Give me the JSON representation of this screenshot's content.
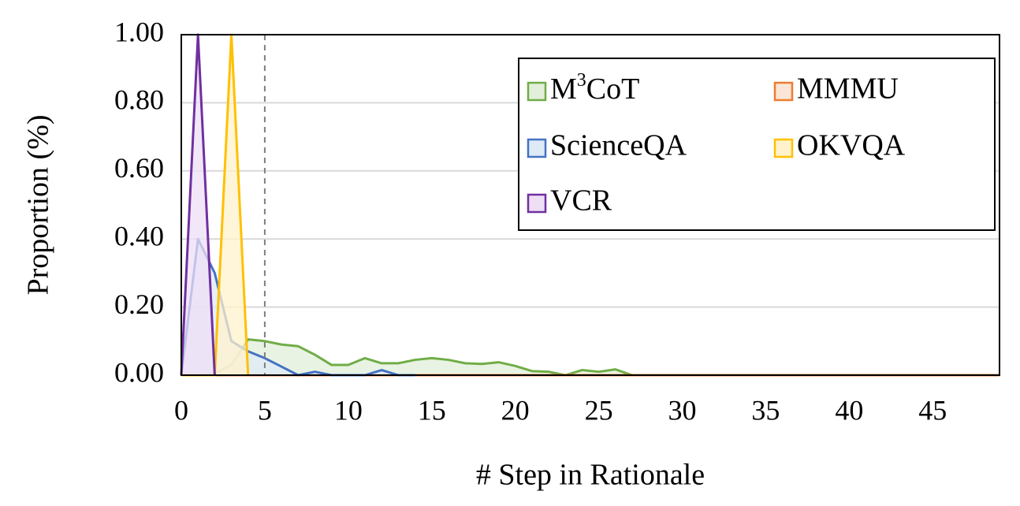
{
  "chart_data": {
    "type": "area",
    "xlabel": "# Step in Rationale",
    "ylabel": "Proportion (%)",
    "xlim": [
      0,
      49
    ],
    "ylim": [
      0,
      1
    ],
    "x_ticks": [
      0,
      5,
      10,
      15,
      20,
      25,
      30,
      35,
      40,
      45
    ],
    "x_tick_labels": [
      "0",
      "5",
      "10",
      "15",
      "20",
      "25",
      "30",
      "35",
      "40",
      "45"
    ],
    "y_ticks": [
      0,
      0.2,
      0.4,
      0.6,
      0.8,
      1.0
    ],
    "y_tick_labels": [
      "0.00",
      "0.20",
      "0.40",
      "0.60",
      "0.80",
      "1.00"
    ],
    "grid": "horizontal",
    "reference_line_x": 5,
    "legend_position": "top-right",
    "series": [
      {
        "name": "M³CoT",
        "label_base": "M",
        "label_sup": "3",
        "label_rest": "CoT",
        "color": "#70ad47",
        "fill": "#e2efda",
        "x": [
          0,
          1,
          2,
          3,
          4,
          5,
          6,
          7,
          8,
          9,
          10,
          11,
          12,
          13,
          14,
          15,
          16,
          17,
          18,
          19,
          20,
          21,
          22,
          23,
          24,
          25,
          26,
          27,
          28,
          29,
          30,
          31,
          32,
          33
        ],
        "y": [
          0,
          0,
          0.005,
          0.03,
          0.105,
          0.1,
          0.09,
          0.085,
          0.06,
          0.03,
          0.03,
          0.05,
          0.035,
          0.035,
          0.045,
          0.05,
          0.045,
          0.035,
          0.033,
          0.038,
          0.027,
          0.012,
          0.01,
          0,
          0.015,
          0.01,
          0.017,
          0,
          0,
          0,
          0,
          0,
          0,
          0
        ]
      },
      {
        "name": "MMMU",
        "color": "#ed7d31",
        "fill": "#fbe5d6",
        "x": [
          0,
          1,
          2,
          3,
          4,
          5,
          10,
          20,
          30,
          40,
          49
        ],
        "y": [
          0,
          0,
          0,
          0,
          0,
          0,
          0,
          0,
          0,
          0,
          0
        ]
      },
      {
        "name": "ScienceQA",
        "color": "#4472c4",
        "fill": "#deebf7",
        "x": [
          0,
          1,
          2,
          3,
          4,
          5,
          6,
          7,
          8,
          9,
          10,
          11,
          12,
          13,
          14
        ],
        "y": [
          0,
          0.4,
          0.3,
          0.1,
          0.07,
          0.05,
          0.025,
          0,
          0.01,
          0,
          0,
          0,
          0.015,
          0,
          0
        ]
      },
      {
        "name": "OKVQA",
        "color": "#ffc000",
        "fill": "#fff2cc",
        "x": [
          0,
          1,
          2,
          3,
          4
        ],
        "y": [
          0,
          0,
          0,
          1,
          0
        ]
      },
      {
        "name": "VCR",
        "color": "#7030a0",
        "fill": "#eedff5",
        "x": [
          0,
          1,
          2
        ],
        "y": [
          0,
          1,
          0
        ]
      }
    ]
  }
}
